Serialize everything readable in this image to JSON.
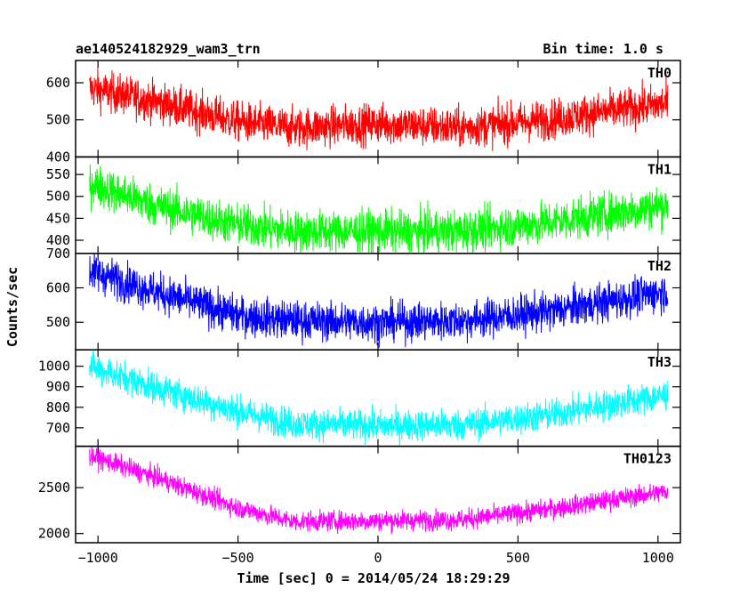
{
  "chart_data": {
    "type": "line",
    "title_left": "ae140524182929_wam3_trn",
    "title_right": "Bin time: 1.0 s",
    "xlabel": "Time [sec] 0 = 2014/05/24 18:29:29",
    "ylabel": "Counts/sec",
    "xlim": [
      -1080,
      1080
    ],
    "xticks": [
      -1000,
      -500,
      0,
      500,
      1000
    ],
    "xtick_labels": [
      "−1000",
      "−500",
      "0",
      "500",
      "1000"
    ],
    "x_range": [
      -1030,
      1035
    ],
    "panels": [
      {
        "name": "TH0",
        "color": "#ff0000",
        "ylim": [
          400,
          660
        ],
        "yticks": [
          400,
          500,
          600
        ],
        "ytick_labels": [
          "400",
          "500",
          "600"
        ],
        "trend_x": [
          -1030,
          -800,
          -500,
          -300,
          0,
          300,
          600,
          1035
        ],
        "trend_y": [
          585,
          550,
          495,
          478,
          490,
          478,
          500,
          545
        ],
        "noise": 27
      },
      {
        "name": "TH1",
        "color": "#00ff00",
        "ylim": [
          370,
          590
        ],
        "yticks": [
          400,
          450,
          500,
          550
        ],
        "ytick_labels": [
          "400",
          "450",
          "500",
          "550"
        ],
        "trend_x": [
          -1030,
          -800,
          -500,
          -300,
          0,
          300,
          600,
          1035
        ],
        "trend_y": [
          530,
          480,
          435,
          420,
          420,
          420,
          440,
          480
        ],
        "noise": 24
      },
      {
        "name": "TH2",
        "color": "#0000ff",
        "ylim": [
          420,
          700
        ],
        "yticks": [
          500,
          600,
          700
        ],
        "ytick_labels": [
          "500",
          "600",
          "700"
        ],
        "trend_x": [
          -1030,
          -800,
          -500,
          -300,
          0,
          300,
          600,
          1035
        ],
        "trend_y": [
          650,
          590,
          520,
          505,
          500,
          505,
          530,
          590
        ],
        "noise": 28
      },
      {
        "name": "TH3",
        "color": "#00ffff",
        "ylim": [
          610,
          1080
        ],
        "yticks": [
          700,
          800,
          900,
          1000
        ],
        "ytick_labels": [
          "700",
          "800",
          "900",
          "1000"
        ],
        "trend_x": [
          -1030,
          -800,
          -500,
          -300,
          0,
          300,
          600,
          1035
        ],
        "trend_y": [
          1000,
          900,
          780,
          720,
          710,
          715,
          760,
          860
        ],
        "noise": 38
      },
      {
        "name": "TH0123",
        "color": "#ff00ff",
        "ylim": [
          1900,
          2950
        ],
        "yticks": [
          2000,
          2500
        ],
        "ytick_labels": [
          "2000",
          "2500"
        ],
        "trend_x": [
          -1030,
          -800,
          -500,
          -300,
          0,
          300,
          600,
          1035
        ],
        "trend_y": [
          2850,
          2620,
          2280,
          2130,
          2140,
          2150,
          2260,
          2460
        ],
        "noise": 55
      }
    ]
  }
}
